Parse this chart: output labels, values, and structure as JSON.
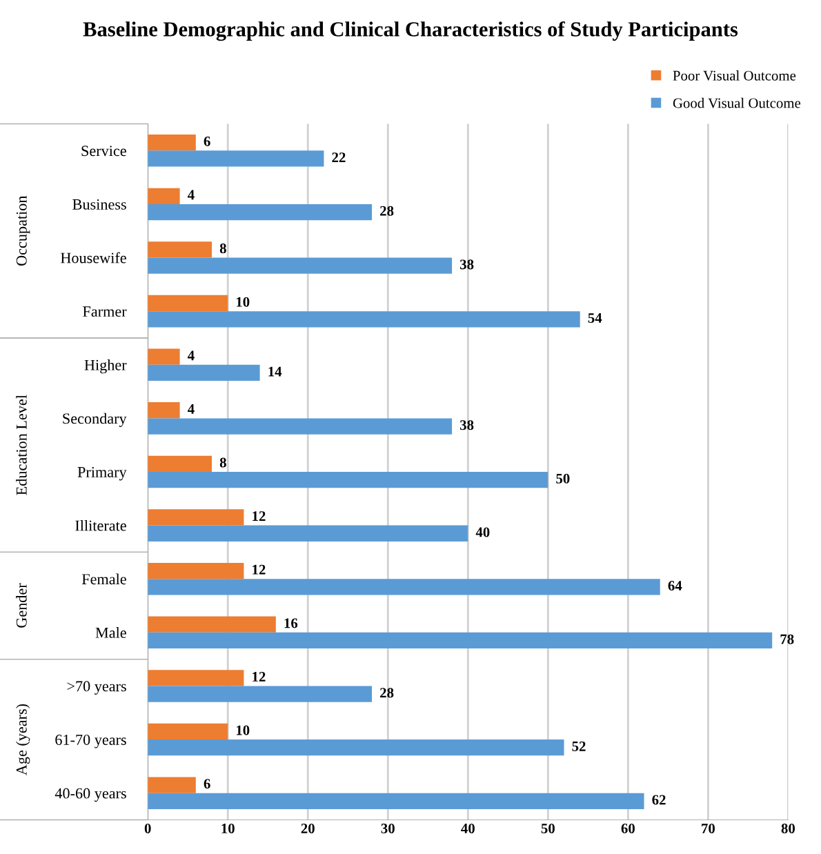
{
  "chart_data": {
    "type": "bar",
    "orientation": "horizontal",
    "title": "Baseline Demographic and Clinical Characteristics of Study Participants",
    "categories": [
      "Service",
      "Business",
      "Housewife",
      "Farmer",
      "Higher",
      "Secondary",
      "Primary",
      "Illiterate",
      "Female",
      "Male",
      ">70 years",
      "61-70 years",
      "40-60 years"
    ],
    "series": [
      {
        "name": "Poor Visual Outcome",
        "color": "#ed7d31",
        "values": [
          6,
          4,
          8,
          10,
          4,
          4,
          8,
          12,
          12,
          16,
          12,
          10,
          6
        ]
      },
      {
        "name": "Good Visual Outcome",
        "color": "#5b9bd5",
        "values": [
          22,
          28,
          38,
          54,
          14,
          38,
          50,
          40,
          64,
          78,
          28,
          52,
          62
        ]
      }
    ],
    "xlim": [
      0,
      80
    ],
    "xticks": [
      0,
      10,
      20,
      30,
      40,
      50,
      60,
      70,
      80
    ],
    "grid": "x",
    "legend": "top right",
    "data_labels": true,
    "annotations": [
      "Occupation",
      "Education Level",
      "Gender",
      "Age (years)"
    ]
  }
}
